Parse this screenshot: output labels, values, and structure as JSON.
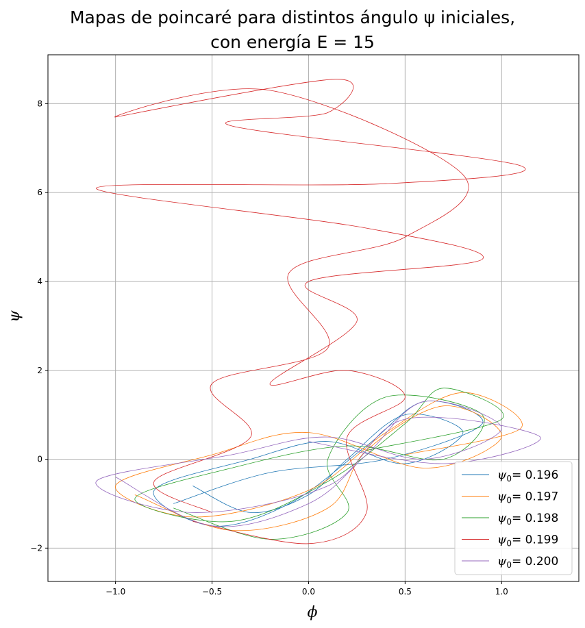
{
  "chart_data": {
    "type": "line",
    "title_line1": "Mapas de poincaré para distintos ángulo ψ iniciales,",
    "title_line2": "con energía E = 15",
    "xlabel": "ϕ",
    "ylabel": "ψ",
    "xlim": [
      -1.35,
      1.4
    ],
    "ylim": [
      -2.75,
      9.1
    ],
    "x_ticks": [
      -1.0,
      -0.5,
      0.0,
      0.5,
      1.0
    ],
    "x_tick_labels": [
      "−1.0",
      "−0.5",
      "0.0",
      "0.5",
      "1.0"
    ],
    "y_ticks": [
      -2,
      0,
      2,
      4,
      6,
      8
    ],
    "y_tick_labels": [
      "−2",
      "0",
      "2",
      "4",
      "6",
      "8"
    ],
    "grid": true,
    "legend_position": "lower-right",
    "series": [
      {
        "name": "ψ0= 0.196",
        "legend_sym": "ψ",
        "legend_sub": "0",
        "legend_val": "= 0.196",
        "color": "#1f77b4",
        "points": [
          [
            -0.6,
            -0.6
          ],
          [
            -0.3,
            -1.2
          ],
          [
            0.0,
            -0.8
          ],
          [
            0.2,
            0.0
          ],
          [
            0.5,
            1.0
          ],
          [
            0.8,
            0.6
          ],
          [
            0.5,
            -0.1
          ],
          [
            0.1,
            0.4
          ],
          [
            -0.3,
            0.0
          ],
          [
            -0.8,
            -0.7
          ],
          [
            -0.5,
            -1.5
          ],
          [
            -0.1,
            -1.0
          ],
          [
            0.3,
            0.3
          ],
          [
            0.6,
            1.3
          ],
          [
            0.9,
            0.8
          ],
          [
            0.4,
            0.0
          ],
          [
            -0.2,
            -0.3
          ],
          [
            -0.7,
            -1.0
          ]
        ]
      },
      {
        "name": "ψ0= 0.197",
        "legend_sym": "ψ",
        "legend_sub": "0",
        "legend_val": "= 0.197",
        "color": "#ff7f0e",
        "points": [
          [
            -0.9,
            -0.8
          ],
          [
            -0.4,
            -1.6
          ],
          [
            0.1,
            -1.1
          ],
          [
            0.3,
            0.2
          ],
          [
            0.7,
            1.2
          ],
          [
            1.0,
            0.5
          ],
          [
            0.6,
            -0.2
          ],
          [
            0.0,
            0.6
          ],
          [
            -0.5,
            0.1
          ],
          [
            -1.0,
            -0.6
          ],
          [
            -0.6,
            -1.3
          ],
          [
            0.0,
            -0.7
          ],
          [
            0.4,
            0.6
          ],
          [
            0.8,
            1.5
          ],
          [
            1.1,
            0.7
          ],
          [
            0.5,
            0.1
          ]
        ]
      },
      {
        "name": "ψ0= 0.198",
        "legend_sym": "ψ",
        "legend_sub": "0",
        "legend_val": "= 0.198",
        "color": "#2ca02c",
        "points": [
          [
            -0.7,
            -1.1
          ],
          [
            -0.2,
            -1.8
          ],
          [
            0.2,
            -1.2
          ],
          [
            0.1,
            0.0
          ],
          [
            0.4,
            1.4
          ],
          [
            0.9,
            1.0
          ],
          [
            0.7,
            0.0
          ],
          [
            0.2,
            0.3
          ],
          [
            -0.4,
            -0.2
          ],
          [
            -0.9,
            -0.9
          ],
          [
            -0.4,
            -1.4
          ],
          [
            0.1,
            -0.5
          ],
          [
            0.5,
            0.8
          ],
          [
            0.7,
            1.6
          ],
          [
            1.0,
            0.9
          ],
          [
            0.3,
            0.2
          ]
        ]
      },
      {
        "name": "ψ0= 0.199",
        "legend_sym": "ψ",
        "legend_sub": "0",
        "legend_val": "= 0.199",
        "color": "#d62728",
        "points": [
          [
            -0.6,
            -1.4
          ],
          [
            0.0,
            -1.9
          ],
          [
            0.3,
            -1.2
          ],
          [
            0.2,
            0.5
          ],
          [
            0.5,
            1.4
          ],
          [
            0.2,
            2.0
          ],
          [
            -0.2,
            1.7
          ],
          [
            0.25,
            3.1
          ],
          [
            0.0,
            4.0
          ],
          [
            0.9,
            4.5
          ],
          [
            0.3,
            5.2
          ],
          [
            -1.1,
            6.1
          ],
          [
            0.4,
            6.2
          ],
          [
            1.1,
            6.6
          ],
          [
            -0.4,
            7.5
          ],
          [
            0.1,
            7.8
          ],
          [
            0.14,
            8.55
          ],
          [
            -1.0,
            7.7
          ],
          [
            -0.2,
            8.3
          ],
          [
            0.8,
            6.4
          ],
          [
            0.5,
            5.0
          ],
          [
            -0.1,
            4.2
          ],
          [
            0.1,
            2.5
          ],
          [
            -0.5,
            1.7
          ],
          [
            -0.3,
            0.5
          ],
          [
            -0.8,
            -0.5
          ],
          [
            -0.5,
            -1.2
          ]
        ]
      },
      {
        "name": "ψ0= 0.200",
        "legend_sym": "ψ",
        "legend_sub": "0",
        "legend_val": "= 0.200",
        "color": "#9467bd",
        "points": [
          [
            -1.0,
            -0.4
          ],
          [
            -0.5,
            -1.5
          ],
          [
            0.0,
            -1.0
          ],
          [
            0.3,
            0.1
          ],
          [
            0.6,
            1.3
          ],
          [
            1.0,
            0.7
          ],
          [
            0.6,
            0.0
          ],
          [
            0.1,
            0.5
          ],
          [
            -0.4,
            0.1
          ],
          [
            -1.1,
            -0.5
          ],
          [
            -0.6,
            -1.2
          ],
          [
            0.1,
            -0.6
          ],
          [
            0.5,
            0.9
          ],
          [
            1.2,
            0.5
          ],
          [
            0.7,
            -0.1
          ],
          [
            0.0,
            0.4
          ]
        ]
      }
    ]
  }
}
